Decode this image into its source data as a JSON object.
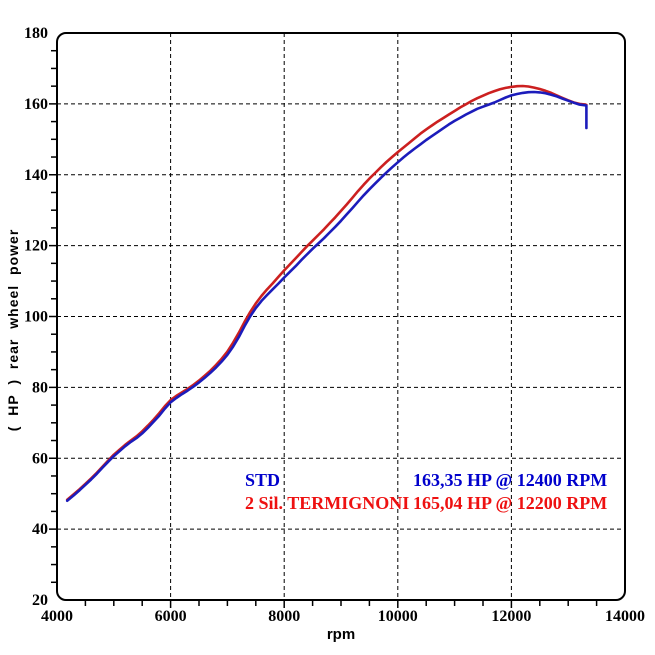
{
  "chart_data": {
    "type": "line",
    "title": "",
    "xlabel": "rpm",
    "ylabel": "( HP )  rear wheel power",
    "xlim": [
      4000,
      14000
    ],
    "ylim": [
      20,
      180
    ],
    "x_major_ticks": [
      4000,
      6000,
      8000,
      10000,
      12000,
      14000
    ],
    "x_minor_step": 500,
    "y_major_ticks": [
      20,
      40,
      60,
      80,
      100,
      120,
      140,
      160,
      180
    ],
    "y_minor_step": 5,
    "grid": {
      "show": true,
      "style": "dashed",
      "color": "#000000",
      "at": "major-ticks"
    },
    "frame_color": "#000000",
    "legend_position": "inside-center-right",
    "series": [
      {
        "name": "2 Sil. TERMIGNONI",
        "curve_color": "#cc2020",
        "label_color": "#ee1111",
        "peak_hp": 165.04,
        "peak_rpm": 12200,
        "peak_label": "165,04 HP @ 12200 RPM",
        "points": [
          [
            4180,
            48.3
          ],
          [
            4300,
            49.9
          ],
          [
            4400,
            51.3
          ],
          [
            4500,
            52.8
          ],
          [
            4600,
            54.3
          ],
          [
            4700,
            55.9
          ],
          [
            4800,
            57.6
          ],
          [
            4900,
            59.3
          ],
          [
            5000,
            61
          ],
          [
            5100,
            62.4
          ],
          [
            5200,
            63.8
          ],
          [
            5300,
            65
          ],
          [
            5400,
            66.2
          ],
          [
            5500,
            67.6
          ],
          [
            5600,
            69.2
          ],
          [
            5700,
            70.9
          ],
          [
            5800,
            72.7
          ],
          [
            5900,
            74.7
          ],
          [
            6000,
            76.4
          ],
          [
            6100,
            77.6
          ],
          [
            6200,
            78.6
          ],
          [
            6300,
            79.6
          ],
          [
            6400,
            80.7
          ],
          [
            6500,
            81.9
          ],
          [
            6600,
            83.3
          ],
          [
            6700,
            84.7
          ],
          [
            6800,
            86.3
          ],
          [
            6900,
            88.1
          ],
          [
            7000,
            90.1
          ],
          [
            7100,
            92.6
          ],
          [
            7200,
            95.4
          ],
          [
            7300,
            98.4
          ],
          [
            7400,
            101.2
          ],
          [
            7500,
            103.7
          ],
          [
            7600,
            105.8
          ],
          [
            7700,
            107.7
          ],
          [
            7800,
            109.4
          ],
          [
            7900,
            111.2
          ],
          [
            8000,
            113
          ],
          [
            8100,
            114.7
          ],
          [
            8200,
            116.4
          ],
          [
            8300,
            118.1
          ],
          [
            8400,
            119.8
          ],
          [
            8500,
            121.4
          ],
          [
            8600,
            123
          ],
          [
            8700,
            124.6
          ],
          [
            8800,
            126.3
          ],
          [
            8900,
            128
          ],
          [
            9000,
            129.8
          ],
          [
            9100,
            131.6
          ],
          [
            9200,
            133.5
          ],
          [
            9300,
            135.4
          ],
          [
            9400,
            137.2
          ],
          [
            9500,
            138.9
          ],
          [
            9600,
            140.5
          ],
          [
            9700,
            142.1
          ],
          [
            9800,
            143.6
          ],
          [
            9900,
            145
          ],
          [
            10000,
            146.4
          ],
          [
            10100,
            147.7
          ],
          [
            10200,
            149
          ],
          [
            10300,
            150.3
          ],
          [
            10400,
            151.6
          ],
          [
            10500,
            152.8
          ],
          [
            10600,
            153.9
          ],
          [
            10700,
            155
          ],
          [
            10800,
            156
          ],
          [
            10900,
            157
          ],
          [
            11000,
            158
          ],
          [
            11100,
            159
          ],
          [
            11200,
            159.9
          ],
          [
            11300,
            160.8
          ],
          [
            11400,
            161.6
          ],
          [
            11500,
            162.3
          ],
          [
            11600,
            163
          ],
          [
            11700,
            163.6
          ],
          [
            11800,
            164.1
          ],
          [
            11900,
            164.5
          ],
          [
            12000,
            164.8
          ],
          [
            12100,
            165
          ],
          [
            12200,
            165.04
          ],
          [
            12300,
            164.9
          ],
          [
            12400,
            164.6
          ],
          [
            12500,
            164.2
          ],
          [
            12600,
            163.7
          ],
          [
            12700,
            163.1
          ],
          [
            12800,
            162.4
          ],
          [
            12900,
            161.7
          ],
          [
            13000,
            161
          ],
          [
            13100,
            160.4
          ],
          [
            13200,
            160
          ],
          [
            13300,
            159.8
          ],
          [
            13320,
            159.7
          ]
        ]
      },
      {
        "name": "STD",
        "curve_color": "#1c1cbb",
        "label_color": "#0000cc",
        "peak_hp": 163.35,
        "peak_rpm": 12400,
        "peak_label": "163,35 HP @ 12400 RPM",
        "points": [
          [
            4180,
            48
          ],
          [
            4300,
            49.6
          ],
          [
            4400,
            51
          ],
          [
            4500,
            52.5
          ],
          [
            4600,
            54
          ],
          [
            4700,
            55.6
          ],
          [
            4800,
            57.3
          ],
          [
            4900,
            59
          ],
          [
            5000,
            60.6
          ],
          [
            5100,
            62
          ],
          [
            5200,
            63.4
          ],
          [
            5300,
            64.6
          ],
          [
            5400,
            65.7
          ],
          [
            5500,
            67
          ],
          [
            5600,
            68.6
          ],
          [
            5700,
            70.3
          ],
          [
            5800,
            72
          ],
          [
            5900,
            74
          ],
          [
            6000,
            75.8
          ],
          [
            6100,
            77
          ],
          [
            6200,
            78.1
          ],
          [
            6300,
            79.1
          ],
          [
            6400,
            80.2
          ],
          [
            6500,
            81.4
          ],
          [
            6600,
            82.7
          ],
          [
            6700,
            84.1
          ],
          [
            6800,
            85.6
          ],
          [
            6900,
            87.3
          ],
          [
            7000,
            89.2
          ],
          [
            7100,
            91.5
          ],
          [
            7200,
            94.2
          ],
          [
            7300,
            97.2
          ],
          [
            7400,
            100
          ],
          [
            7500,
            102.4
          ],
          [
            7600,
            104.4
          ],
          [
            7700,
            106.1
          ],
          [
            7800,
            107.7
          ],
          [
            7900,
            109.3
          ],
          [
            8000,
            111
          ],
          [
            8100,
            112.6
          ],
          [
            8200,
            114.2
          ],
          [
            8300,
            115.9
          ],
          [
            8400,
            117.5
          ],
          [
            8500,
            119.1
          ],
          [
            8600,
            120.6
          ],
          [
            8700,
            122.1
          ],
          [
            8800,
            123.7
          ],
          [
            8900,
            125.3
          ],
          [
            9000,
            127
          ],
          [
            9100,
            128.8
          ],
          [
            9200,
            130.6
          ],
          [
            9300,
            132.4
          ],
          [
            9400,
            134.2
          ],
          [
            9500,
            135.9
          ],
          [
            9600,
            137.5
          ],
          [
            9700,
            139.1
          ],
          [
            9800,
            140.6
          ],
          [
            9900,
            142.1
          ],
          [
            10000,
            143.5
          ],
          [
            10100,
            144.9
          ],
          [
            10200,
            146.2
          ],
          [
            10300,
            147.4
          ],
          [
            10400,
            148.6
          ],
          [
            10500,
            149.8
          ],
          [
            10600,
            150.9
          ],
          [
            10700,
            152
          ],
          [
            10800,
            153.1
          ],
          [
            10900,
            154.2
          ],
          [
            11000,
            155.2
          ],
          [
            11100,
            156.1
          ],
          [
            11200,
            157
          ],
          [
            11300,
            157.8
          ],
          [
            11400,
            158.6
          ],
          [
            11500,
            159.2
          ],
          [
            11600,
            159.8
          ],
          [
            11700,
            160.4
          ],
          [
            11800,
            161.1
          ],
          [
            11900,
            161.8
          ],
          [
            12000,
            162.4
          ],
          [
            12100,
            162.8
          ],
          [
            12200,
            163.1
          ],
          [
            12300,
            163.3
          ],
          [
            12400,
            163.35
          ],
          [
            12500,
            163.25
          ],
          [
            12600,
            163
          ],
          [
            12700,
            162.6
          ],
          [
            12800,
            162.1
          ],
          [
            12900,
            161.5
          ],
          [
            13000,
            160.9
          ],
          [
            13100,
            160.3
          ],
          [
            13200,
            159.8
          ],
          [
            13300,
            159.6
          ],
          [
            13320,
            159.5
          ],
          [
            13320,
            153.2
          ]
        ]
      }
    ],
    "legend_rows": [
      {
        "name": "STD",
        "value": "163,35 HP @ 12400 RPM"
      },
      {
        "name": "2 Sil. TERMIGNONI",
        "value": "165,04 HP @ 12200 RPM"
      }
    ]
  }
}
